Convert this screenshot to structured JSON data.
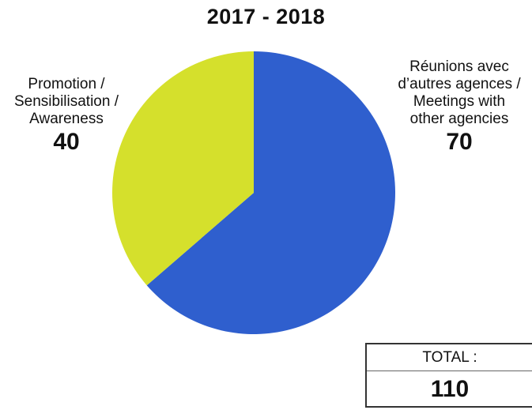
{
  "chart_data": {
    "type": "pie",
    "title": "2017 - 2018",
    "slices": [
      {
        "label_lines": [
          "Réunions avec",
          "d’autres agences /",
          "Meetings with",
          "other agencies"
        ],
        "value": 70,
        "color": "#2f5fce"
      },
      {
        "label_lines": [
          "Promotion /",
          "Sensibilisation /",
          "Awareness"
        ],
        "value": 40,
        "color": "#d5e02c"
      }
    ],
    "start_angle": "12 o'clock",
    "direction": "clockwise"
  },
  "total": {
    "label": "TOTAL :",
    "value": "110"
  }
}
